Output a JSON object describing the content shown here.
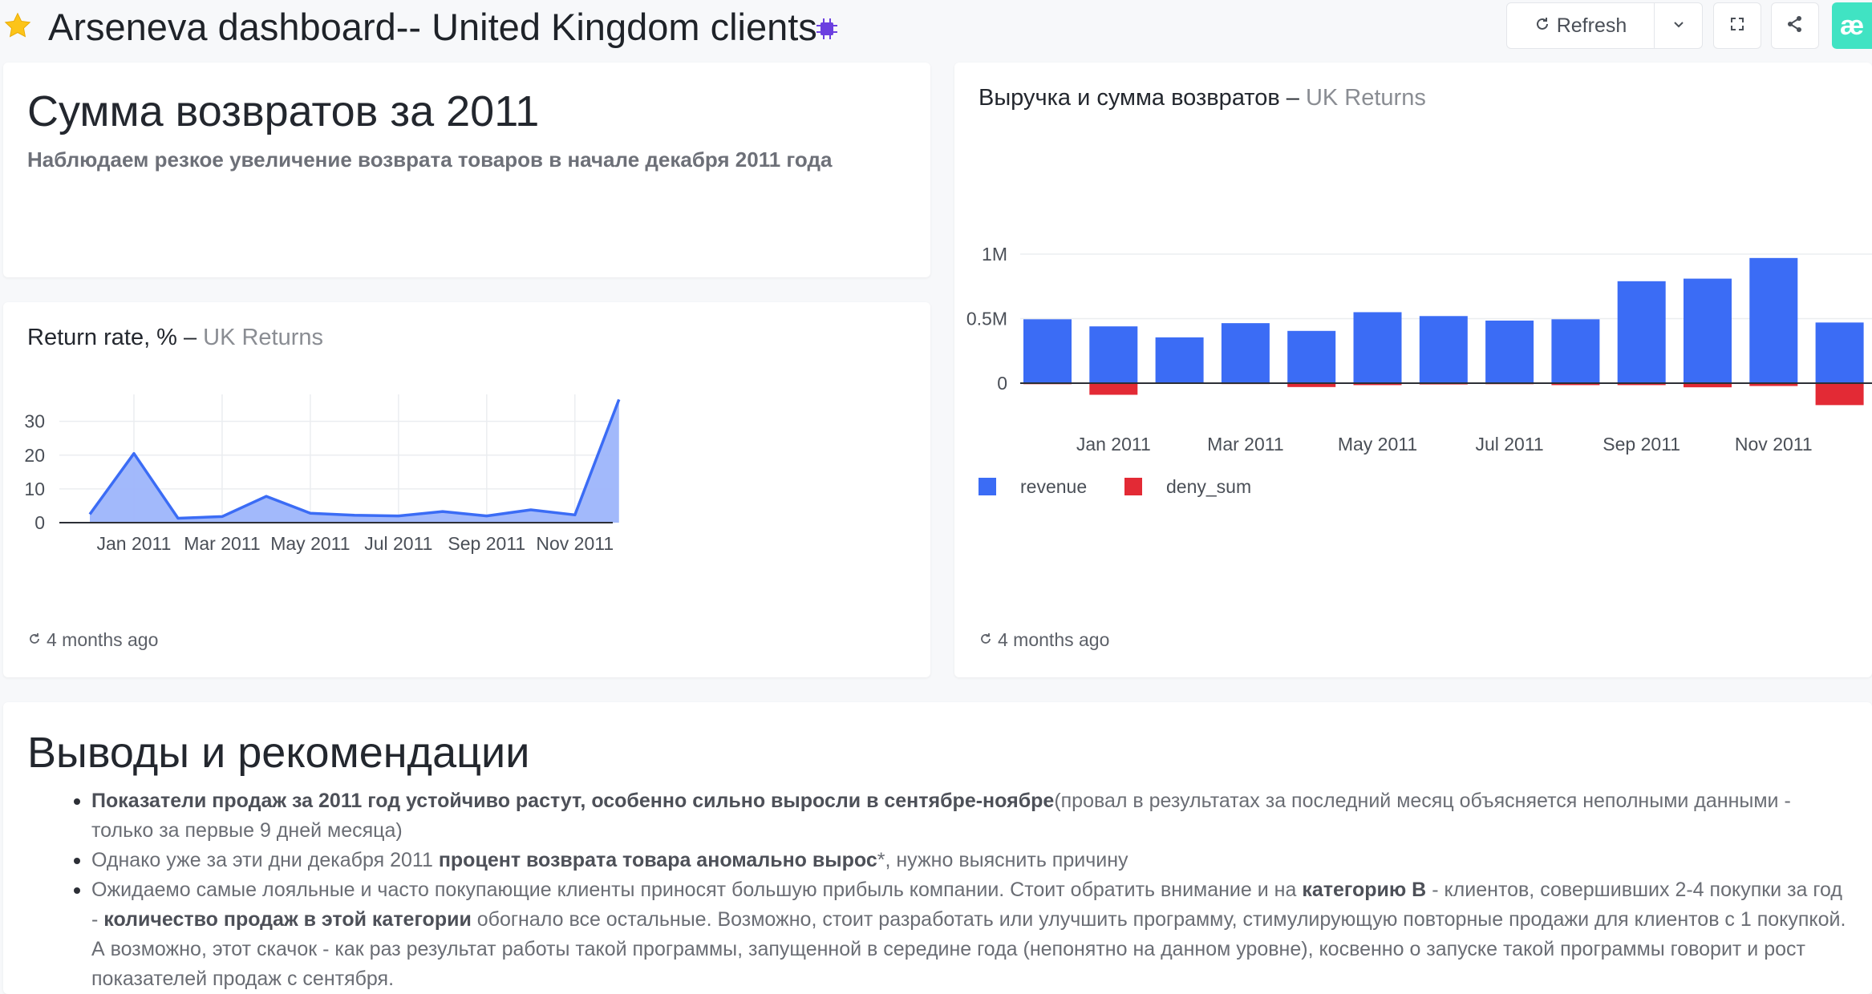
{
  "header": {
    "title": "Arseneva dashboard-- United Kingdom clients",
    "refresh_label": "Refresh",
    "brand_glyph": "æ",
    "icons": [
      "star-icon",
      "chip-icon",
      "refresh-icon",
      "chevron-down-icon",
      "fullscreen-icon",
      "share-icon"
    ]
  },
  "title_card": {
    "heading": "Сумма возвратов за 2011",
    "subtitle": "Наблюдаем резкое увеличение возврата товаров в начале декабря 2011 года"
  },
  "return_rate_card": {
    "title": "Return rate, %",
    "separator": "–",
    "dataset": "UK Returns",
    "updated": "4 months ago"
  },
  "revenue_card": {
    "title": "Выручка и сумма возвратов",
    "separator": "–",
    "dataset": "UK Returns",
    "updated": "4 months ago"
  },
  "chart_data": [
    {
      "type": "area",
      "title": "Return rate, %",
      "x": [
        "2010-12",
        "2011-01",
        "2011-02",
        "2011-03",
        "2011-04",
        "2011-05",
        "2011-06",
        "2011-07",
        "2011-08",
        "2011-09",
        "2011-10",
        "2011-11",
        "2011-12"
      ],
      "series": [
        {
          "values": [
            2.5,
            20.5,
            1.3,
            1.8,
            7.8,
            2.8,
            2.2,
            2.0,
            3.3,
            2.0,
            3.8,
            2.3,
            36.5
          ]
        }
      ],
      "tick_labels": [
        "Jan 2011",
        "Mar 2011",
        "May 2011",
        "Jul 2011",
        "Sep 2011",
        "Nov 2011"
      ],
      "y_ticks": [
        "0",
        "10",
        "20",
        "30"
      ],
      "ylim": [
        0,
        38
      ],
      "color": "#3b6cf5",
      "fill": "#9db5fb",
      "grid": true
    },
    {
      "type": "bar",
      "title": "Выручка и сумма возвратов",
      "x": [
        "2010-12",
        "2011-01",
        "2011-02",
        "2011-03",
        "2011-04",
        "2011-05",
        "2011-06",
        "2011-07",
        "2011-08",
        "2011-09",
        "2011-10",
        "2011-11",
        "2011-12"
      ],
      "series": [
        {
          "name": "revenue",
          "color": "#3b6cf5",
          "values": [
            495000,
            440000,
            355000,
            465000,
            405000,
            550000,
            520000,
            485000,
            495000,
            790000,
            810000,
            970000,
            470000
          ]
        },
        {
          "name": "deny_sum",
          "color": "#e32a35",
          "values": [
            -8000,
            -90000,
            -6000,
            -7000,
            -30000,
            -15000,
            -10000,
            -8000,
            -15000,
            -15000,
            -32000,
            -22000,
            -170000
          ]
        }
      ],
      "tick_labels": [
        "Jan 2011",
        "Mar 2011",
        "May 2011",
        "Jul 2011",
        "Sep 2011",
        "Nov 2011"
      ],
      "y_ticks": [
        "0",
        "0.5M",
        "1M"
      ],
      "ylim": [
        -200000,
        1000000
      ],
      "legend": "bottom-left",
      "grid": true
    }
  ],
  "notes": {
    "heading": "Выводы и рекомендации",
    "items": [
      {
        "bold": "Показатели продаж за 2011 год устойчиво растут, особенно сильно выросли в сентябре-ноябре",
        "text": "(провал в результатах за последний месяц объясняется неполными данными - только за первые 9 дней месяца)"
      },
      {
        "pre": "Однако уже за эти дни декабря 2011 ",
        "bold": "процент возврата товара аномально вырос",
        "text": "*, нужно выяснить причину"
      },
      {
        "pre": "Ожидаемо самые лояльные и часто покупающие клиенты приносят большую прибыль компании. Стоит обратить внимание и на ",
        "bold": "категорию B",
        "mid": " - клиентов, совершивших 2-4 покупки за год - ",
        "bold2": "количество продаж в этой категории",
        "text": " обогнало все остальные. Возможно, стоит разработать или улучшить программу, стимулирующую повторные продажи для клиентов с 1 покупкой. А возможно, этот скачок - как раз результат работы такой программы, запущенной в середине года (непонятно на данном уровне), косвенно о запуске такой программы говорит и рост показателей продаж с сентября."
      }
    ]
  }
}
